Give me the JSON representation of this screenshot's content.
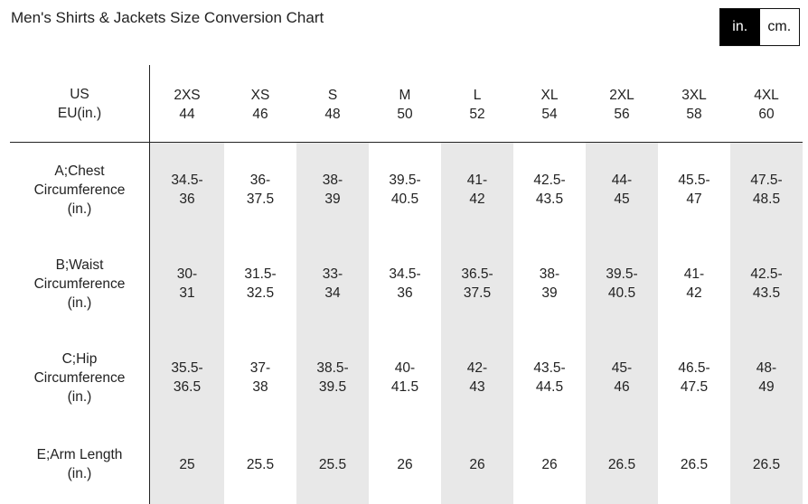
{
  "title": "Men's Shirts & Jackets Size Conversion Chart",
  "unit_toggle": {
    "inches_label": "in.",
    "cm_label": "cm.",
    "selected": "in."
  },
  "colors": {
    "shade": "#e8e8e8",
    "active_bg": "#000000",
    "text": "#222222"
  },
  "table": {
    "header_label": [
      "US",
      "EU(in.)"
    ],
    "sizes": [
      {
        "us": "2XS",
        "eu": "44"
      },
      {
        "us": "XS",
        "eu": "46"
      },
      {
        "us": "S",
        "eu": "48"
      },
      {
        "us": "M",
        "eu": "50"
      },
      {
        "us": "L",
        "eu": "52"
      },
      {
        "us": "XL",
        "eu": "54"
      },
      {
        "us": "2XL",
        "eu": "56"
      },
      {
        "us": "3XL",
        "eu": "58"
      },
      {
        "us": "4XL",
        "eu": "60"
      }
    ],
    "rows": [
      {
        "label": [
          "A;Chest",
          "Circumference",
          "(in.)"
        ],
        "values": [
          [
            "34.5-",
            "36"
          ],
          [
            "36-",
            "37.5"
          ],
          [
            "38-",
            "39"
          ],
          [
            "39.5-",
            "40.5"
          ],
          [
            "41-",
            "42"
          ],
          [
            "42.5-",
            "43.5"
          ],
          [
            "44-",
            "45"
          ],
          [
            "45.5-",
            "47"
          ],
          [
            "47.5-",
            "48.5"
          ]
        ]
      },
      {
        "label": [
          "B;Waist",
          "Circumference",
          "(in.)"
        ],
        "values": [
          [
            "30-",
            "31"
          ],
          [
            "31.5-",
            "32.5"
          ],
          [
            "33-",
            "34"
          ],
          [
            "34.5-",
            "36"
          ],
          [
            "36.5-",
            "37.5"
          ],
          [
            "38-",
            "39"
          ],
          [
            "39.5-",
            "40.5"
          ],
          [
            "41-",
            "42"
          ],
          [
            "42.5-",
            "43.5"
          ]
        ]
      },
      {
        "label": [
          "C;Hip",
          "Circumference",
          "(in.)"
        ],
        "values": [
          [
            "35.5-",
            "36.5"
          ],
          [
            "37-",
            "38"
          ],
          [
            "38.5-",
            "39.5"
          ],
          [
            "40-",
            "41.5"
          ],
          [
            "42-",
            "43"
          ],
          [
            "43.5-",
            "44.5"
          ],
          [
            "45-",
            "46"
          ],
          [
            "46.5-",
            "47.5"
          ],
          [
            "48-",
            "49"
          ]
        ]
      },
      {
        "label": [
          "E;Arm Length",
          "(in.)"
        ],
        "values": [
          [
            "25"
          ],
          [
            "25.5"
          ],
          [
            "25.5"
          ],
          [
            "26"
          ],
          [
            "26"
          ],
          [
            "26"
          ],
          [
            "26.5"
          ],
          [
            "26.5"
          ],
          [
            "26.5"
          ]
        ]
      }
    ]
  }
}
